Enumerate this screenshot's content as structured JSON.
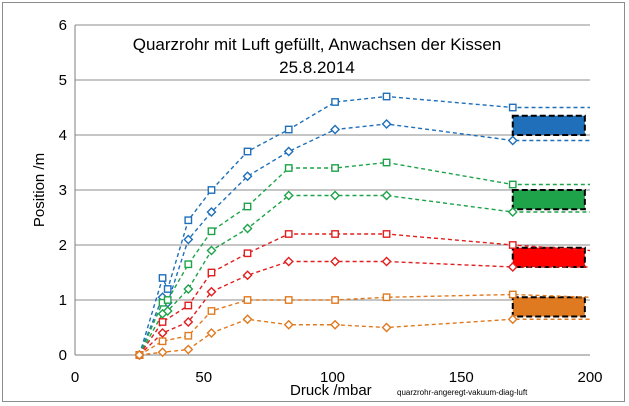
{
  "chart_data": {
    "type": "line",
    "title": "Quarzrohr mit Luft gefüllt, Anwachsen der Kissen",
    "subtitle": "25.8.2014",
    "xlabel": "Druck /mbar",
    "ylabel": "Position /m",
    "note": "quarzrohr-angeregt-vakuum-diag-luft",
    "xlim": [
      0,
      200
    ],
    "ylim": [
      0,
      6
    ],
    "xticks": [
      "0",
      "50",
      "100",
      "150",
      "200"
    ],
    "yticks": [
      "0",
      "1",
      "2",
      "3",
      "4",
      "5",
      "6"
    ],
    "grid": "horizontal",
    "series": [
      {
        "color": "#1f6fba",
        "marker": "square",
        "x": [
          25,
          34,
          36,
          44,
          53,
          67,
          83,
          101,
          121,
          170,
          200
        ],
        "y": [
          0,
          1.4,
          1.2,
          2.45,
          3.0,
          3.7,
          4.1,
          4.6,
          4.7,
          4.5,
          4.5
        ]
      },
      {
        "color": "#1f6fba",
        "marker": "diamond",
        "x": [
          25,
          34,
          36,
          44,
          53,
          67,
          83,
          101,
          121,
          170,
          200
        ],
        "y": [
          0,
          1.05,
          0.95,
          2.1,
          2.6,
          3.25,
          3.7,
          4.1,
          4.2,
          3.9,
          3.9
        ]
      },
      {
        "color": "#1ea34a",
        "marker": "square",
        "x": [
          25,
          34,
          36,
          44,
          53,
          67,
          83,
          101,
          121,
          170,
          200
        ],
        "y": [
          0,
          0.95,
          1.0,
          1.65,
          2.25,
          2.7,
          3.4,
          3.4,
          3.5,
          3.1,
          3.1
        ]
      },
      {
        "color": "#1ea34a",
        "marker": "diamond",
        "x": [
          25,
          34,
          36,
          44,
          53,
          67,
          83,
          101,
          121,
          170,
          200
        ],
        "y": [
          0,
          0.75,
          0.8,
          1.2,
          1.9,
          2.3,
          2.9,
          2.9,
          2.9,
          2.6,
          2.6
        ]
      },
      {
        "color": "#e02020",
        "marker": "square",
        "x": [
          25,
          34,
          44,
          53,
          67,
          83,
          101,
          121,
          170,
          200
        ],
        "y": [
          0,
          0.6,
          0.9,
          1.5,
          1.85,
          2.2,
          2.2,
          2.2,
          2.0,
          1.9
        ]
      },
      {
        "color": "#e02020",
        "marker": "diamond",
        "x": [
          25,
          34,
          44,
          53,
          67,
          83,
          101,
          121,
          170,
          200
        ],
        "y": [
          0,
          0.4,
          0.6,
          1.15,
          1.45,
          1.7,
          1.7,
          1.7,
          1.6,
          1.6
        ]
      },
      {
        "color": "#e07a20",
        "marker": "square",
        "x": [
          25,
          34,
          44,
          53,
          67,
          83,
          101,
          121,
          170,
          200
        ],
        "y": [
          0,
          0.25,
          0.35,
          0.8,
          1.0,
          1.0,
          1.0,
          1.05,
          1.1,
          1.05
        ]
      },
      {
        "color": "#e07a20",
        "marker": "diamond",
        "x": [
          25,
          34,
          44,
          53,
          67,
          83,
          101,
          121,
          170,
          200
        ],
        "y": [
          0,
          0.05,
          0.1,
          0.4,
          0.65,
          0.55,
          0.55,
          0.5,
          0.65,
          0.65
        ]
      }
    ],
    "boxes": [
      {
        "color": "#1f6fba",
        "x": [
          170,
          198
        ],
        "y": [
          4.0,
          4.35
        ]
      },
      {
        "color": "#1ea34a",
        "x": [
          170,
          198
        ],
        "y": [
          2.65,
          3.0
        ]
      },
      {
        "color": "#ff0000",
        "x": [
          170,
          198
        ],
        "y": [
          1.6,
          1.95
        ]
      },
      {
        "color": "#e07a20",
        "x": [
          170,
          198
        ],
        "y": [
          0.7,
          1.05
        ]
      }
    ]
  }
}
